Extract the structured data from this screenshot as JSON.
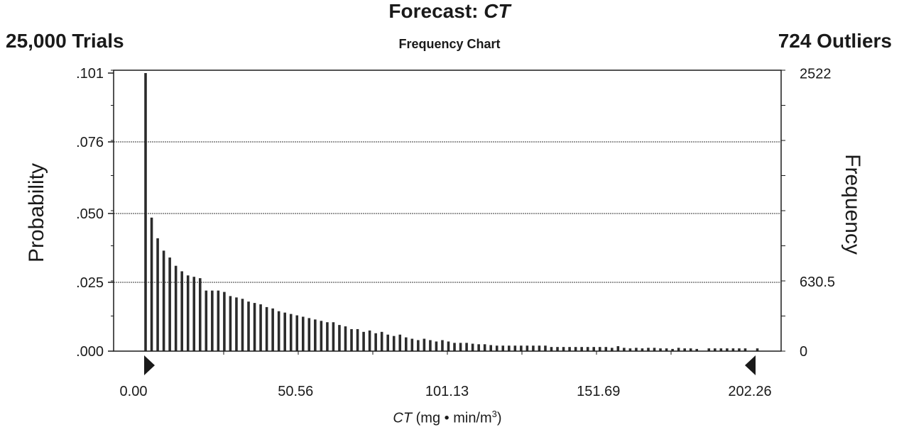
{
  "header": {
    "title_prefix": "Forecast: ",
    "title_var": "CT",
    "subtitle": "Frequency Chart",
    "trials": "25,000 Trials",
    "outliers": "724 Outliers"
  },
  "colors": {
    "bar": "#2b2b2b",
    "axis": "#1a1a1a",
    "grid": "#333333"
  },
  "chart_data": {
    "type": "bar",
    "ylabel": "Probability",
    "ylabel_right": "Frequency",
    "xlabel_var": "CT",
    "xlabel_rest": " (mg • min/m",
    "xlabel_sup": "3",
    "xlabel_close": ")",
    "x_range": [
      0.0,
      202.26
    ],
    "x_ticks": [
      "0.00",
      "50.56",
      "101.13",
      "151.69",
      "202.26"
    ],
    "y_range": [
      0,
      0.101
    ],
    "y_ticks": [
      0,
      0.025,
      0.05,
      0.076,
      0.101
    ],
    "y_tick_labels": [
      ".000",
      ".025",
      ".050",
      ".076",
      ".101"
    ],
    "right_ticks": [
      0,
      630.5,
      2522
    ],
    "right_tick_labels": [
      "0",
      "630.5",
      "2522"
    ],
    "grid": "horizontal dotted",
    "bin_width": 2.0226,
    "values": [
      0.101,
      0.0485,
      0.041,
      0.0365,
      0.034,
      0.031,
      0.029,
      0.0275,
      0.027,
      0.0265,
      0.022,
      0.022,
      0.022,
      0.0215,
      0.02,
      0.0195,
      0.019,
      0.018,
      0.0175,
      0.017,
      0.016,
      0.0155,
      0.0145,
      0.014,
      0.0135,
      0.013,
      0.0125,
      0.012,
      0.0115,
      0.011,
      0.0105,
      0.0105,
      0.0095,
      0.009,
      0.008,
      0.008,
      0.007,
      0.0075,
      0.0065,
      0.007,
      0.006,
      0.0055,
      0.006,
      0.005,
      0.0045,
      0.004,
      0.0045,
      0.004,
      0.0035,
      0.004,
      0.0035,
      0.003,
      0.003,
      0.003,
      0.0027,
      0.0025,
      0.0025,
      0.0022,
      0.002,
      0.002,
      0.002,
      0.002,
      0.002,
      0.002,
      0.002,
      0.002,
      0.002,
      0.0015,
      0.0015,
      0.0015,
      0.0015,
      0.0015,
      0.0015,
      0.0015,
      0.0015,
      0.0015,
      0.0015,
      0.0012,
      0.0018,
      0.0012,
      0.001,
      0.0012,
      0.001,
      0.0012,
      0.0012,
      0.001,
      0.001,
      0.0008,
      0.0012,
      0.001,
      0.001,
      0.0008,
      0,
      0.001,
      0.001,
      0.001,
      0.001,
      0.001,
      0.001,
      0.001,
      0,
      0.001
    ]
  }
}
